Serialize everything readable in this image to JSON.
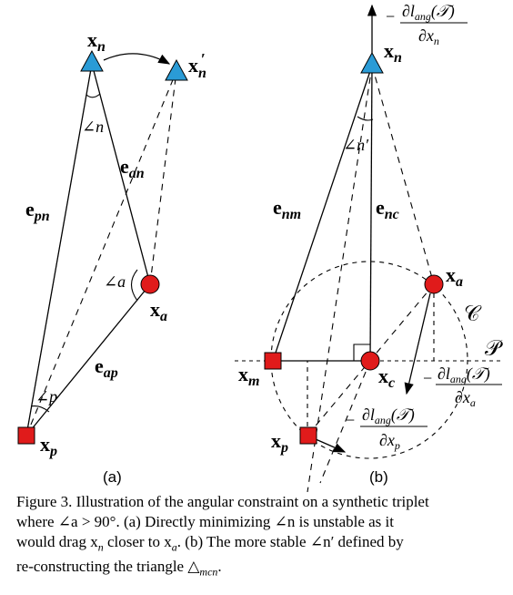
{
  "panel_a": {
    "subfigure_label": "(a)",
    "labels": {
      "xn": "x",
      "xn_sub": "n",
      "xn_prime": "x",
      "xn_prime_sub": "n",
      "xn_prime_mark": "′",
      "xa": "x",
      "xa_sub": "a",
      "xp": "x",
      "xp_sub": "p",
      "e_pn": "e",
      "e_pn_sub": "pn",
      "e_an": "e",
      "e_an_sub": "an",
      "e_ap": "e",
      "e_ap_sub": "ap",
      "angle_n": "∠n",
      "angle_a": "∠a",
      "angle_p": "∠p"
    }
  },
  "panel_b": {
    "subfigure_label": "(b)",
    "labels": {
      "grad_n_minus": "−",
      "grad_n_num": "∂l",
      "grad_n_num_sub": "ang",
      "grad_n_num_arg": "(𝒯)",
      "grad_n_den": "∂x",
      "grad_n_den_sub": "n",
      "xn": "x",
      "xn_sub": "n",
      "xa": "x",
      "xa_sub": "a",
      "xm": "x",
      "xm_sub": "m",
      "xc": "x",
      "xc_sub": "c",
      "xp": "x",
      "xp_sub": "p",
      "e_nm": "e",
      "e_nm_sub": "nm",
      "e_nc": "e",
      "e_nc_sub": "nc",
      "angle_n_prime": "∠n′",
      "circle_C": "𝒞",
      "plane_P": "𝒫",
      "grad_a_minus": "−",
      "grad_a_num": "∂l",
      "grad_a_num_sub": "ang",
      "grad_a_num_arg": "(𝒯)",
      "grad_a_den": "∂x",
      "grad_a_den_sub": "a",
      "grad_p_minus": "−",
      "grad_p_num": "∂l",
      "grad_p_num_sub": "ang",
      "grad_p_num_arg": "(𝒯)",
      "grad_p_den": "∂x",
      "grad_p_den_sub": "p"
    }
  },
  "caption": {
    "line1": "Figure 3. Illustration of the angular constraint on a synthetic triplet",
    "line2": "where ∠a > 90°. (a) Directly minimizing ∠n is unstable as it",
    "line3": "would drag x",
    "line3_sub": "n",
    "line3_rest": " closer to x",
    "line3_sub2": "a",
    "line3_end": ". (b) The more stable ∠n′ defined by",
    "line4": "re-constructing the triangle △",
    "line4_sub": "mcn",
    "line4_end": "."
  },
  "colors": {
    "anchor_triangle": "#2a9bd6",
    "sample_circle": "#e01b1b",
    "sample_square": "#e01b1b",
    "line": "#000000"
  }
}
